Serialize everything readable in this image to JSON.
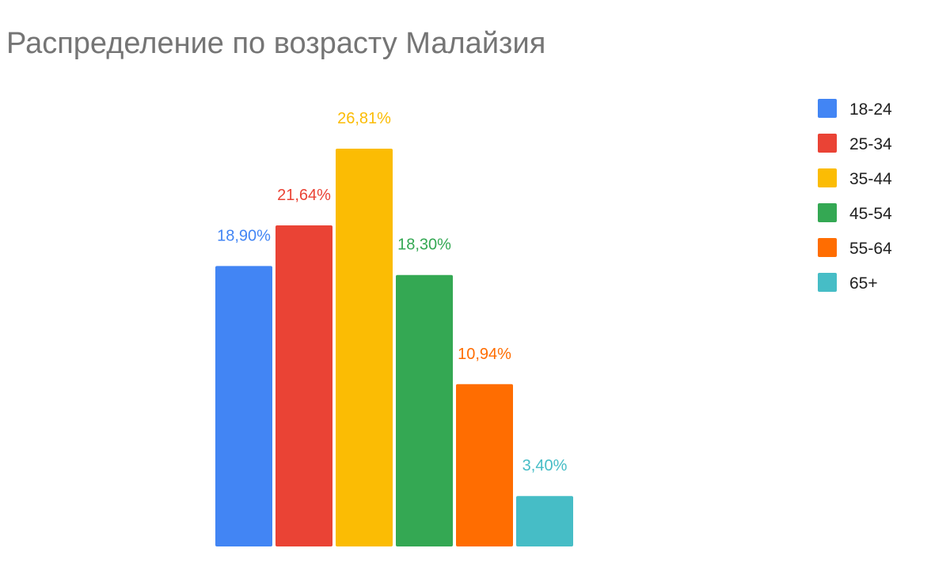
{
  "chart_data": {
    "type": "bar",
    "title": "Распределение по возрасту Малайзия",
    "xlabel": "",
    "ylabel": "",
    "categories": [
      "18-24",
      "25-34",
      "35-44",
      "45-54",
      "55-64",
      "65+"
    ],
    "series": [
      {
        "values": [
          18.9,
          21.64,
          26.81,
          18.3,
          10.94,
          3.4
        ]
      }
    ],
    "data_labels": [
      "18,90%",
      "21,64%",
      "26,81%",
      "18,30%",
      "10,94%",
      "3,40%"
    ],
    "colors": [
      "#4285F4",
      "#EA4335",
      "#FBBC04",
      "#34A853",
      "#FF6D01",
      "#46BDC6"
    ],
    "ylim": [
      0,
      30
    ],
    "grid": false,
    "legend_position": "right"
  }
}
